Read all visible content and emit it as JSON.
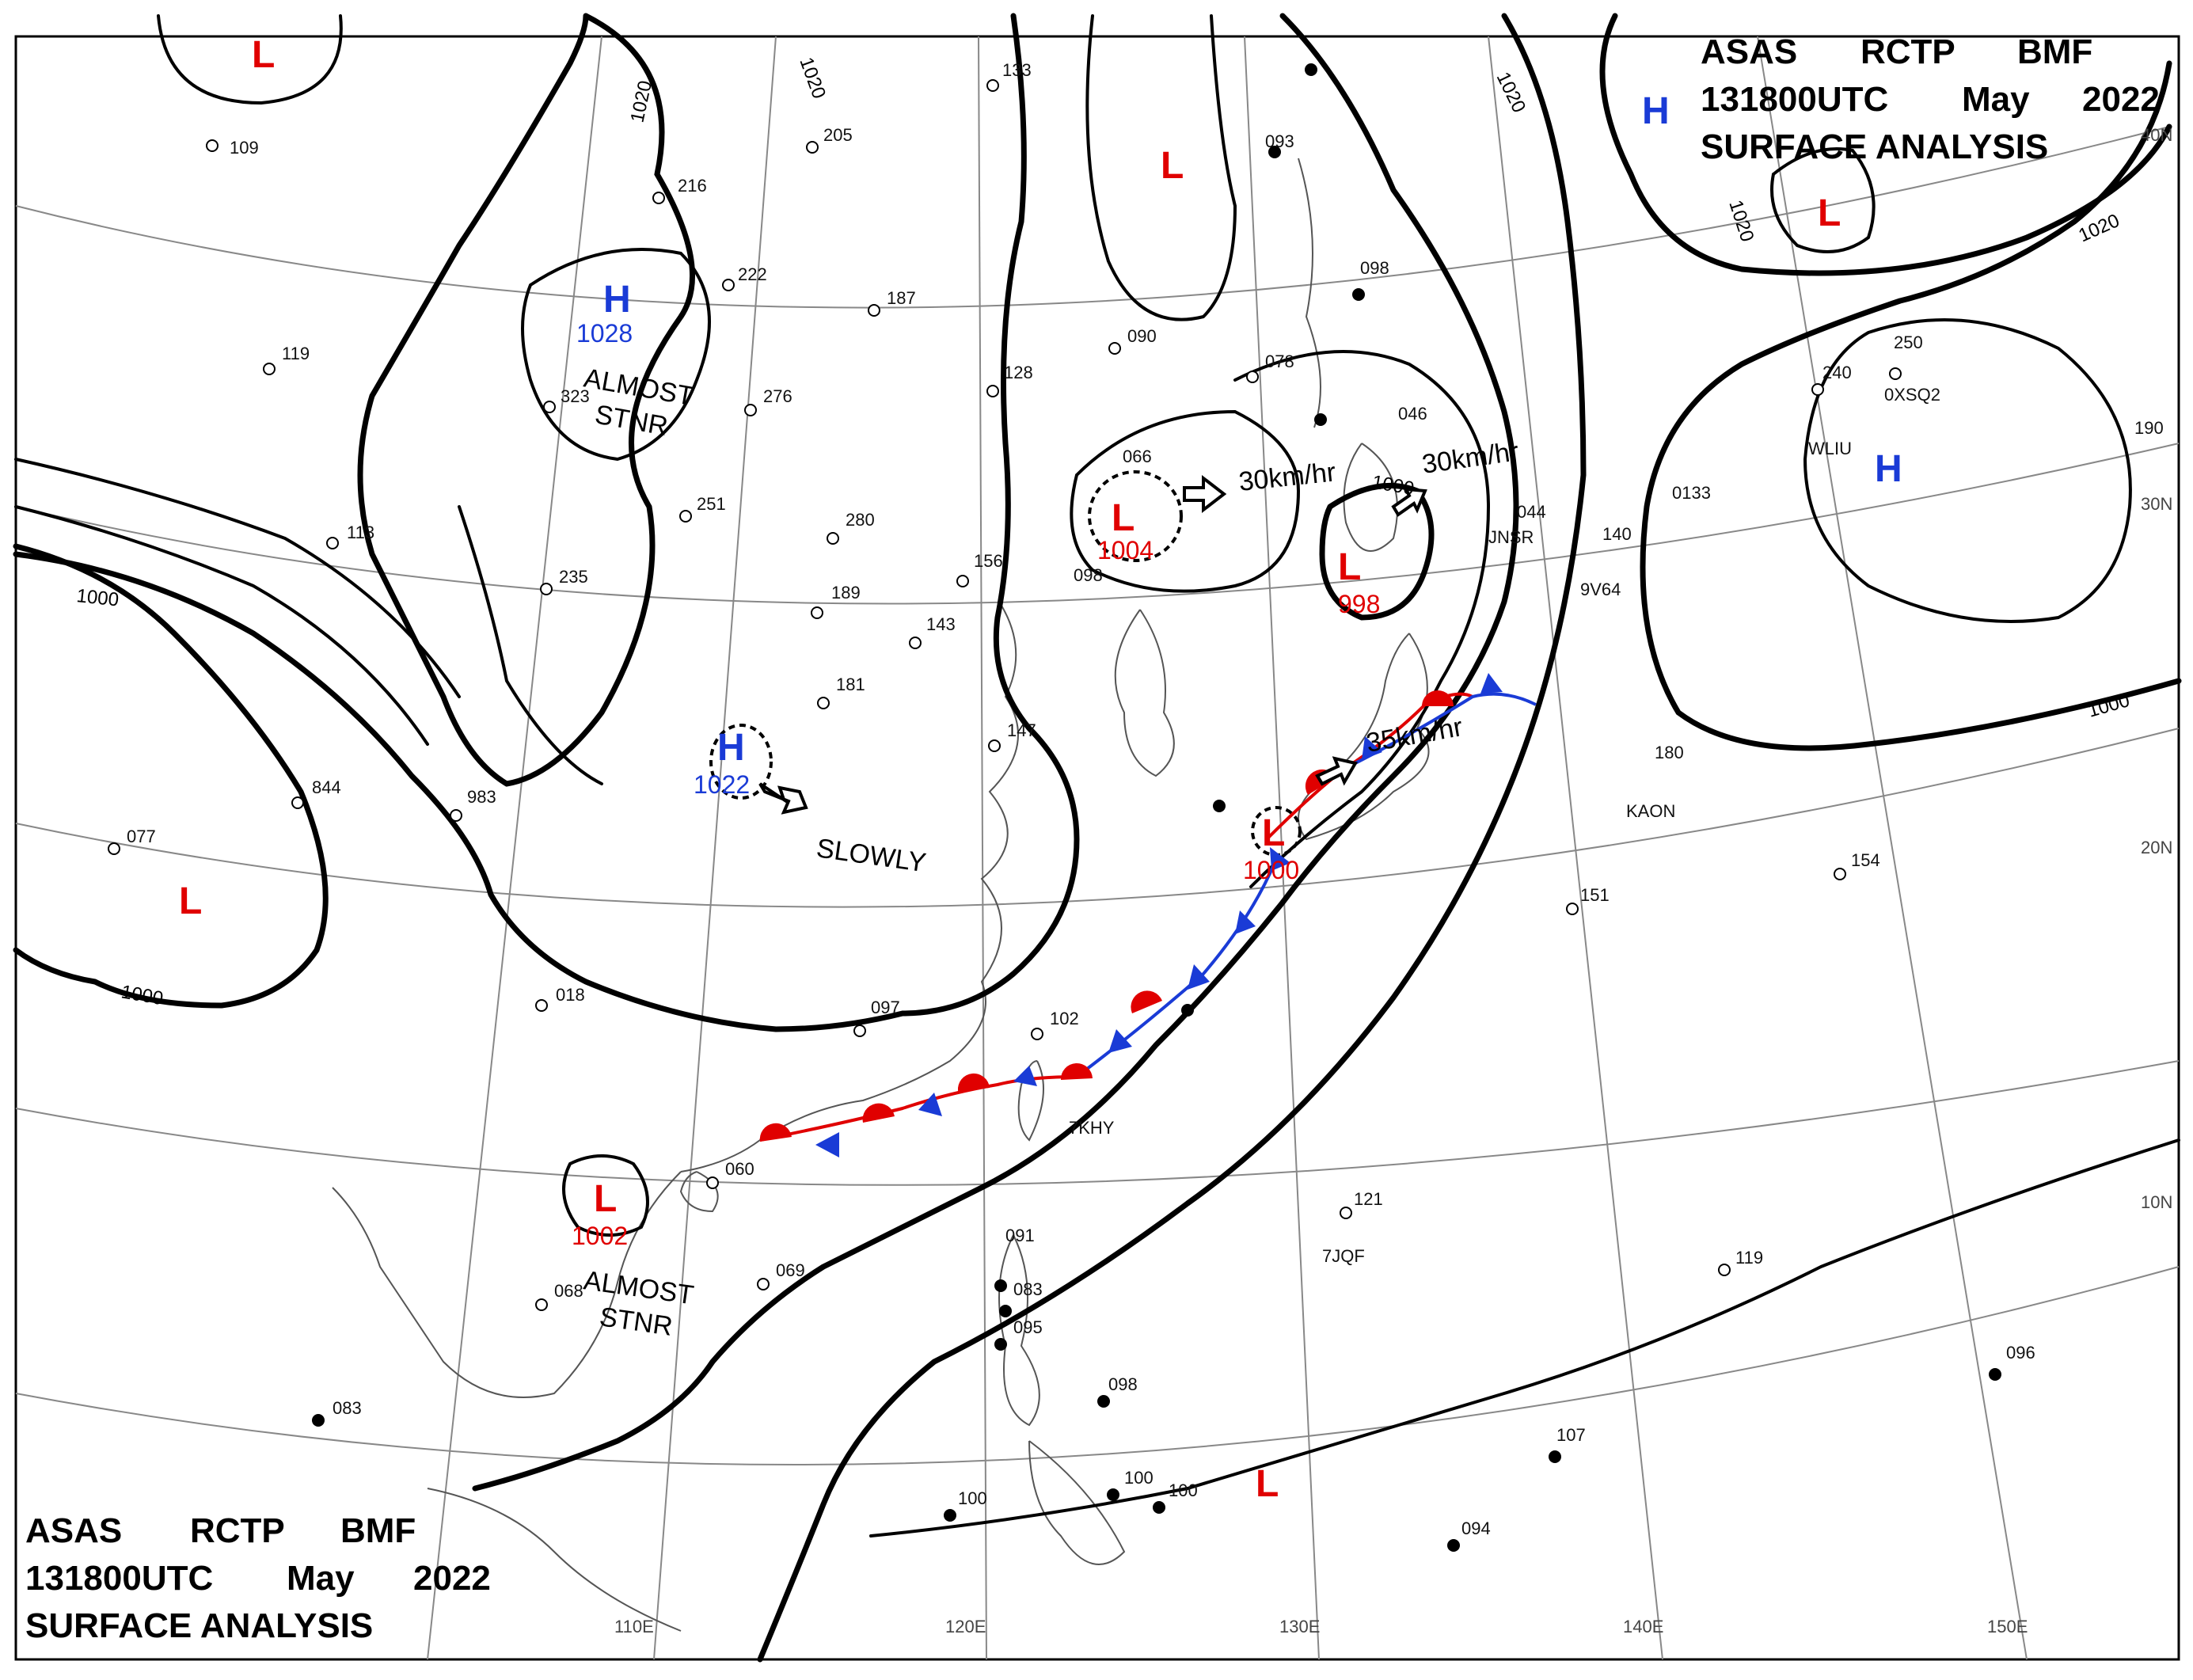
{
  "header": {
    "line1_parts": [
      "ASAS",
      "RCTP",
      "BMF"
    ],
    "line2_parts": [
      "131800UTC",
      "May",
      "2022"
    ],
    "line3": "SURFACE  ANALYSIS"
  },
  "colors": {
    "high": "#1a3bd6",
    "low": "#e00000",
    "cold_front": "#1a3bd6",
    "warm_front": "#e00000",
    "coast": "#555555",
    "grid": "#888888",
    "isobar": "#000000"
  },
  "lon_labels": [
    "110E",
    "120E",
    "130E",
    "140E",
    "150E"
  ],
  "lat_labels": [
    "40N",
    "30N",
    "20N",
    "10N"
  ],
  "isobar_labels": [
    "1020",
    "1020",
    "1020",
    "1020",
    "1020",
    "1000",
    "1000",
    "1000"
  ],
  "pressure_centers": [
    {
      "type": "L",
      "value": ""
    },
    {
      "type": "H",
      "value": "1028"
    },
    {
      "type": "H",
      "value": "1022"
    },
    {
      "type": "L",
      "value": "1004"
    },
    {
      "type": "L",
      "value": "998"
    },
    {
      "type": "L",
      "value": "1000"
    },
    {
      "type": "L",
      "value": "1002"
    },
    {
      "type": "L",
      "value": ""
    },
    {
      "type": "L",
      "value": ""
    },
    {
      "type": "L",
      "value": ""
    },
    {
      "type": "L",
      "value": ""
    },
    {
      "type": "H",
      "value": ""
    },
    {
      "type": "H",
      "value": ""
    }
  ],
  "motion_labels": [
    "ALMOST",
    "STNR",
    "SLOWLY",
    "30km/hr",
    "30km/hr",
    "35km/hr",
    "ALMOST",
    "STNR"
  ],
  "station_text": [
    "109",
    "205",
    "216",
    "133",
    "222",
    "187",
    "276",
    "323",
    "119",
    "113",
    "235",
    "251",
    "280",
    "189",
    "156",
    "098",
    "143",
    "181",
    "147",
    "090",
    "128",
    "078",
    "066",
    "093",
    "046",
    "044",
    "140",
    "098",
    "844",
    "983",
    "077",
    "018",
    "097",
    "102",
    "060",
    "068",
    "069",
    "091",
    "083",
    "095",
    "098",
    "100",
    "100",
    "100",
    "121",
    "119",
    "107",
    "094",
    "096",
    "083",
    "154",
    "151",
    "180",
    "240",
    "250",
    "190",
    "WLIU",
    "0XSQ2",
    "JNSR",
    "9V64",
    "KAON",
    "7JQF",
    "7KHY",
    "0133"
  ],
  "isobar_label_1000_extra": "1000"
}
